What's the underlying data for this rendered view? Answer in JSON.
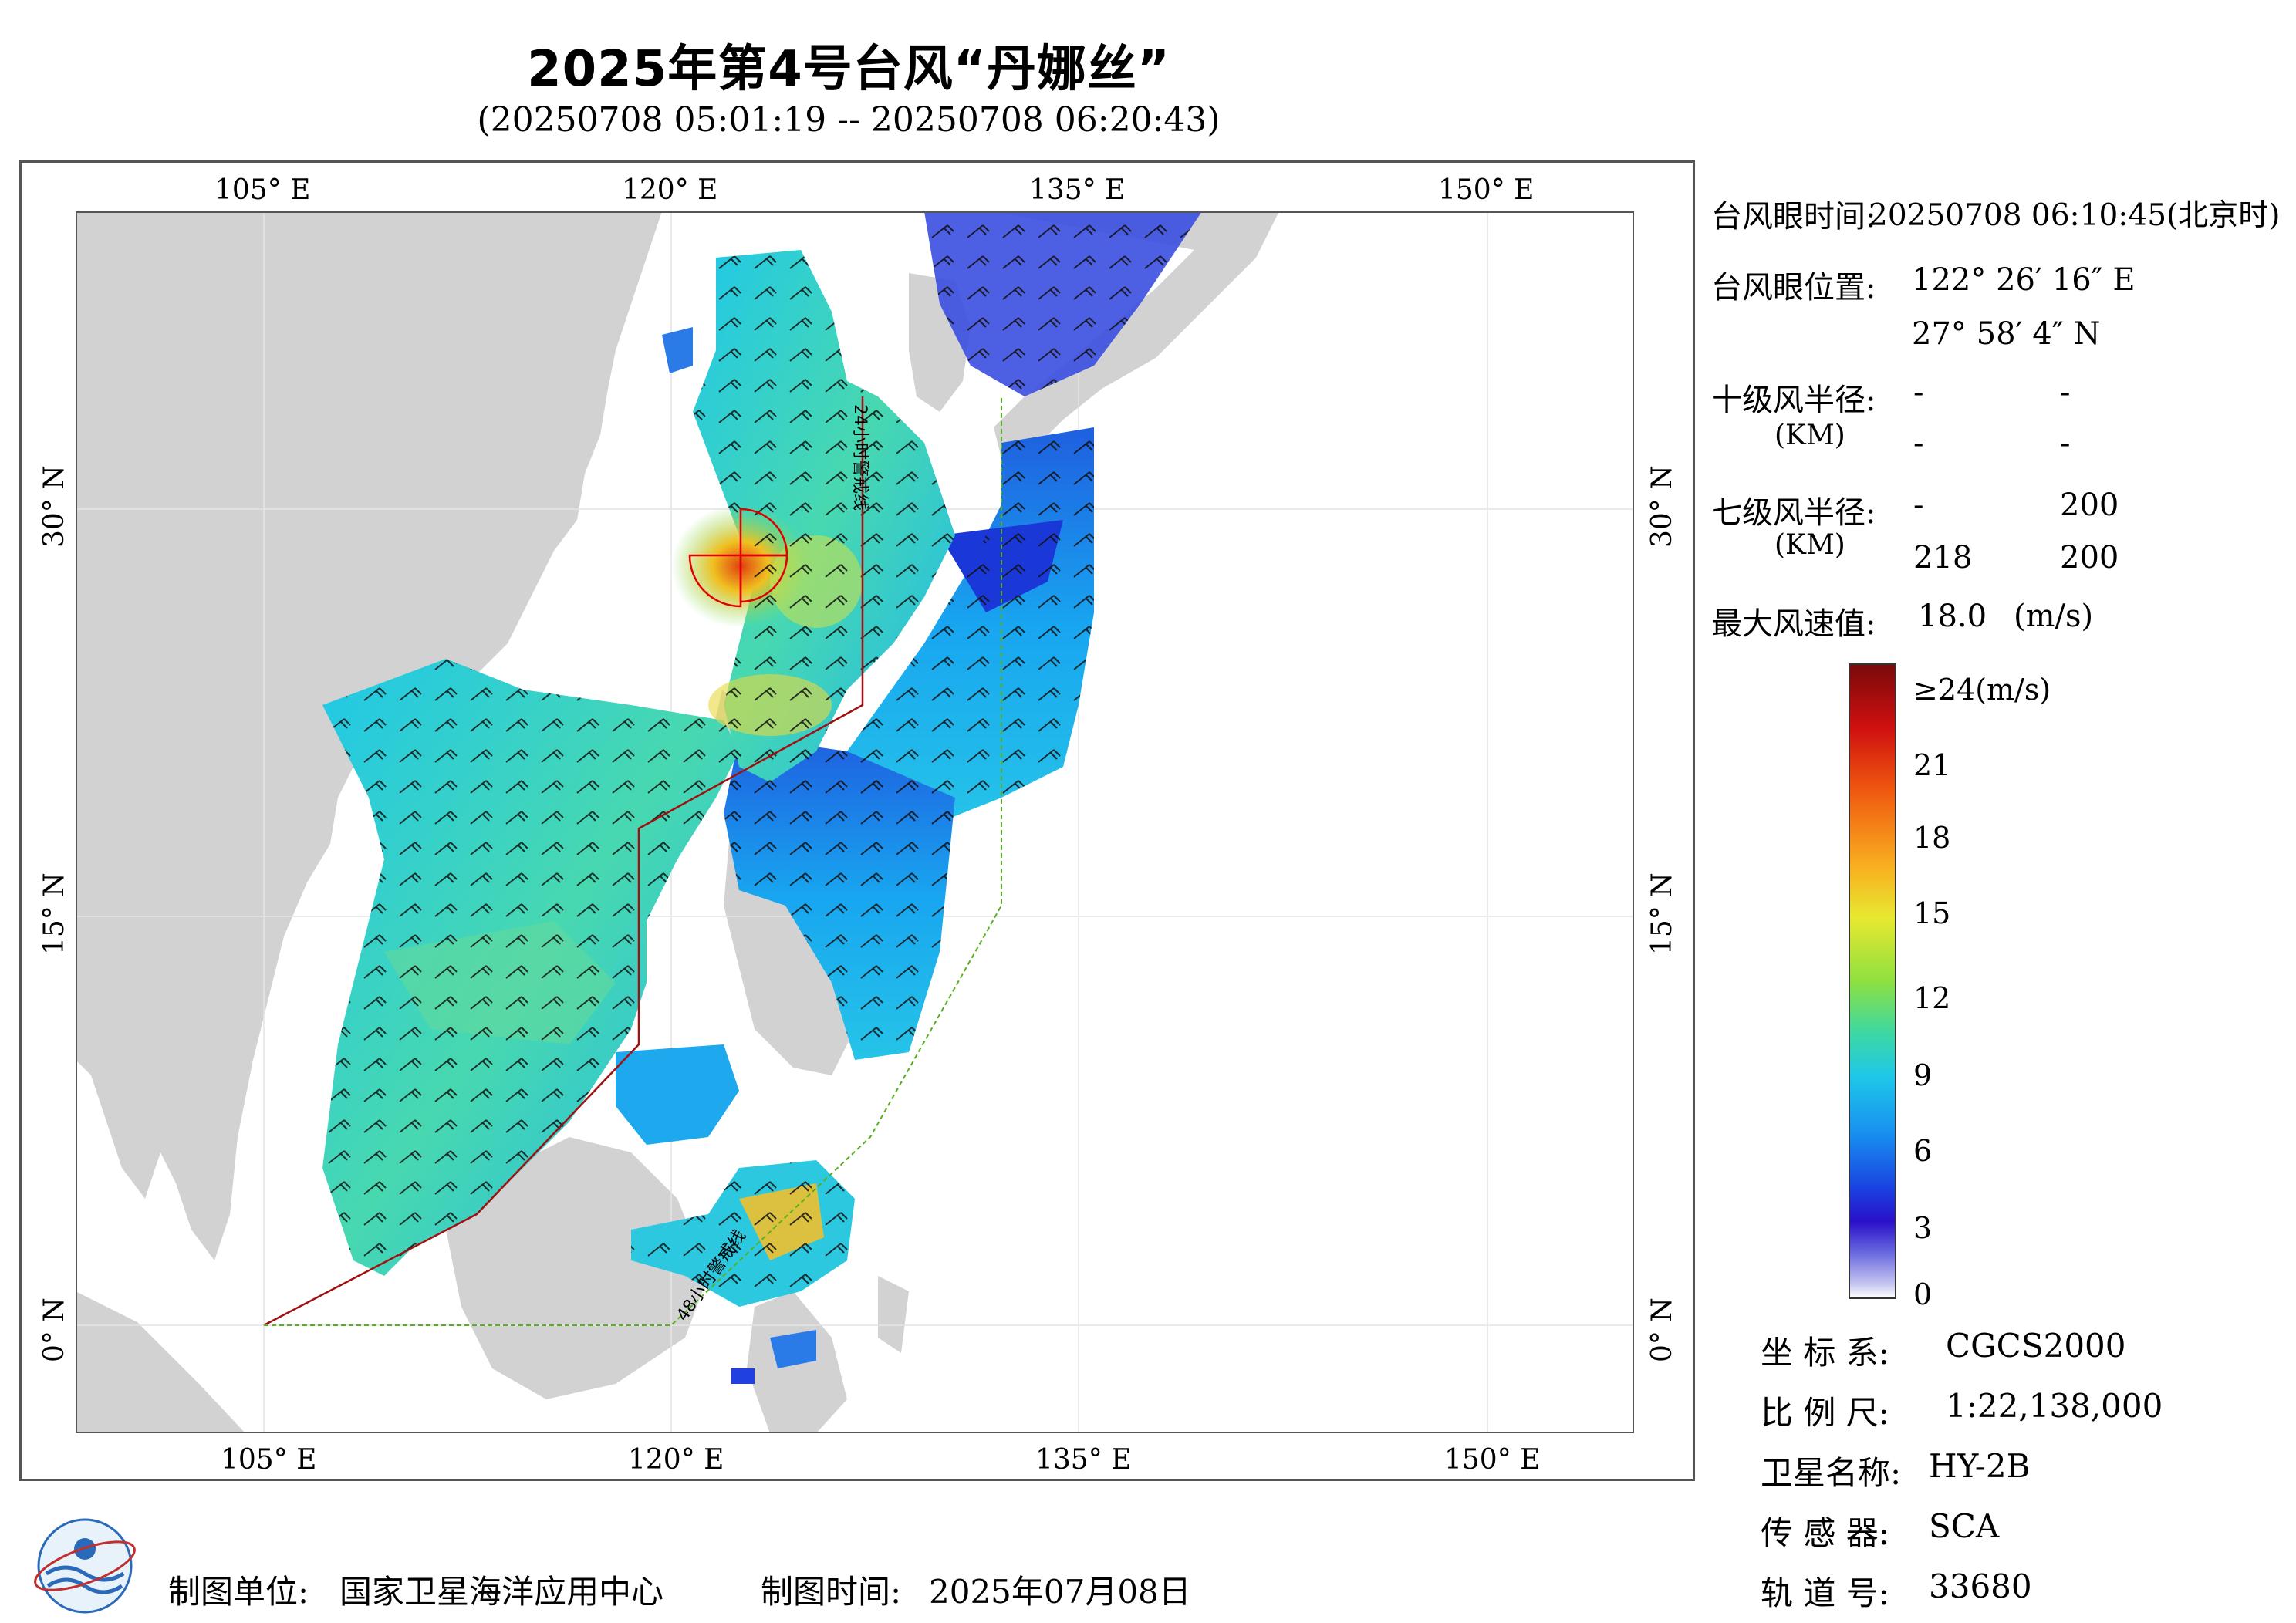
{
  "header": {
    "title": "2025年第4号台风“丹娜丝”",
    "subtitle": "(20250708 05:01:19 -- 20250708 06:20:43)"
  },
  "map": {
    "lon_ticks_top": [
      "105° E",
      "120° E",
      "135° E",
      "150° E"
    ],
    "lon_ticks_bottom": [
      "105° E",
      "120° E",
      "135° E",
      "150° E"
    ],
    "lat_ticks_left": [
      "30° N",
      "15° N",
      "0° N"
    ],
    "lat_ticks_right": [
      "30° N",
      "15° N",
      "0° N"
    ],
    "line_24h": "24小时警戒线",
    "line_48h": "48小时警戒线",
    "colors": {
      "land": "#d2d2d2",
      "sea": "#ffffff",
      "warn24": "#a01010",
      "warn48": "#58b020",
      "circle": "#e00000",
      "frame": "#555555"
    }
  },
  "info": {
    "eye_time_label": "台风眼时间:",
    "eye_time_value": "20250708 06:10:45(北京时)",
    "eye_pos_label": "台风眼位置:",
    "eye_lon": "122° 26′ 16″ E",
    "eye_lat": "27° 58′ 4″ N",
    "r10_label": "十级风半径:",
    "km_label": "(KM)",
    "r10_values": [
      "-",
      "-",
      "-",
      "-"
    ],
    "r7_label": "七级风半径:",
    "r7_values": [
      "-",
      "200",
      "218",
      "200"
    ],
    "max_wind_label": "最大风速值:",
    "max_wind_value": "18.0",
    "max_wind_unit": "(m/s)"
  },
  "colorbar": {
    "labels": [
      "≥24(m/s)",
      "21",
      "18",
      "15",
      "12",
      "9",
      "6",
      "3",
      "0"
    ]
  },
  "metadata": {
    "crs_label": "坐 标 系:",
    "crs_value": "CGCS2000",
    "scale_label": "比 例 尺:",
    "scale_value": "1:22,138,000",
    "satellite_label": "卫星名称:",
    "satellite_value": "HY-2B",
    "sensor_label": "传 感 器:",
    "sensor_value": "SCA",
    "orbit_label": "轨 道 号:",
    "orbit_value": "33680"
  },
  "footer": {
    "producer_label": "制图单位:",
    "producer_value": "国家卫星海洋应用中心",
    "date_label": "制图时间:",
    "date_value": "2025年07月08日"
  }
}
